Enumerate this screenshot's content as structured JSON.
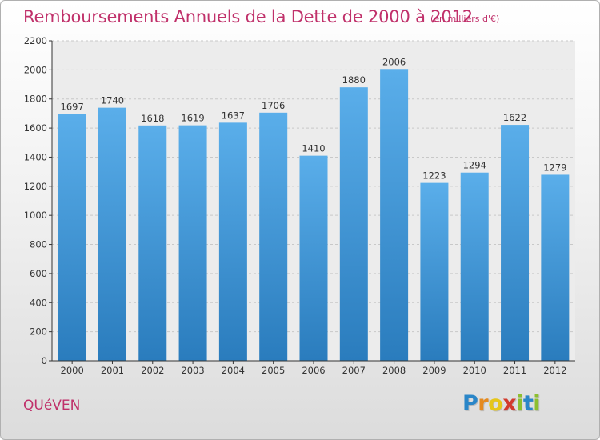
{
  "title": "Remboursements Annuels de la Dette de 2000 à 2012",
  "unit": "(en milliers d'€)",
  "commune": "QUéVEN",
  "logo": {
    "text": "Proxiti",
    "letter_colors": [
      "#2a86c8",
      "#e58a1f",
      "#e6c619",
      "#d23a2d",
      "#8dbf2f",
      "#2a86c8",
      "#8dbf2f"
    ]
  },
  "colors": {
    "bar_top": "#5aaeea",
    "bar_bottom": "#2a7cbd",
    "title": "#c0306a"
  },
  "chart_data": {
    "type": "bar",
    "categories": [
      "2000",
      "2001",
      "2002",
      "2003",
      "2004",
      "2005",
      "2006",
      "2007",
      "2008",
      "2009",
      "2010",
      "2011",
      "2012"
    ],
    "values": [
      1697,
      1740,
      1618,
      1619,
      1637,
      1706,
      1410,
      1880,
      2006,
      1223,
      1294,
      1622,
      1279
    ],
    "ylim": [
      0,
      2200
    ],
    "yticks": [
      0,
      200,
      400,
      600,
      800,
      1000,
      1200,
      1400,
      1600,
      1800,
      2000,
      2200
    ],
    "grid": true
  }
}
